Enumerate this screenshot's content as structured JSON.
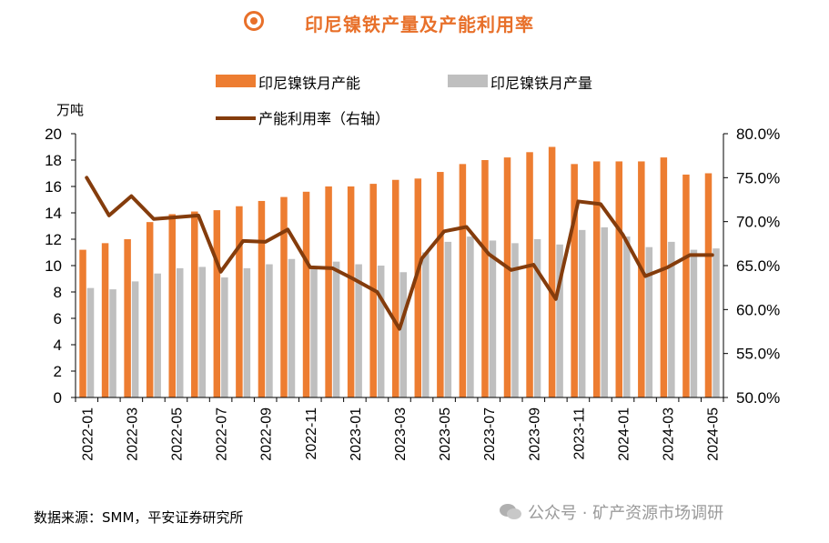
{
  "title": "印尼镍铁产量及产能利用率",
  "source": "数据来源：SMM，平安证券研究所",
  "watermark": "公众号 · 矿产资源市场调研",
  "colors": {
    "capacity": "#ED7D31",
    "output": "#BFBFBF",
    "utilization": "#843C0C",
    "title": "#E8702A"
  },
  "chart_data": {
    "type": "bar",
    "left_axis": {
      "unit": "万吨",
      "min": 0,
      "max": 20,
      "step": 2,
      "ticks": [
        "0",
        "2",
        "4",
        "6",
        "8",
        "10",
        "12",
        "14",
        "16",
        "18",
        "20"
      ]
    },
    "right_axis": {
      "min": 50,
      "max": 80,
      "step": 5,
      "ticks": [
        "50.0%",
        "55.0%",
        "60.0%",
        "65.0%",
        "70.0%",
        "75.0%",
        "80.0%"
      ]
    },
    "categories": [
      "2022-01",
      "2022-02",
      "2022-03",
      "2022-04",
      "2022-05",
      "2022-06",
      "2022-07",
      "2022-08",
      "2022-09",
      "2022-10",
      "2022-11",
      "2022-12",
      "2023-01",
      "2023-02",
      "2023-03",
      "2023-04",
      "2023-05",
      "2023-06",
      "2023-07",
      "2023-08",
      "2023-09",
      "2023-10",
      "2023-11",
      "2023-12",
      "2024-01",
      "2024-02",
      "2024-03",
      "2024-04",
      "2024-05"
    ],
    "x_tick_labels": [
      "2022-01",
      "2022-03",
      "2022-05",
      "2022-07",
      "2022-09",
      "2022-11",
      "2023-01",
      "2023-03",
      "2023-05",
      "2023-07",
      "2023-09",
      "2023-11",
      "2024-01",
      "2024-03",
      "2024-05"
    ],
    "series": [
      {
        "name": "印尼镍铁月产能",
        "type": "bar",
        "axis": "left",
        "values": [
          11.2,
          11.7,
          12.0,
          13.3,
          13.9,
          14.1,
          14.2,
          14.5,
          14.9,
          15.2,
          15.6,
          16.0,
          16.0,
          16.2,
          16.5,
          16.6,
          17.1,
          17.7,
          18.0,
          18.2,
          18.6,
          19.0,
          17.7,
          17.9,
          17.9,
          17.9,
          18.2,
          16.9,
          17.0
        ]
      },
      {
        "name": "印尼镍铁月产量",
        "type": "bar",
        "axis": "left",
        "values": [
          8.3,
          8.2,
          8.8,
          9.4,
          9.8,
          9.9,
          9.1,
          9.8,
          10.1,
          10.5,
          9.9,
          10.3,
          10.1,
          10.0,
          9.5,
          11.0,
          11.8,
          12.2,
          11.9,
          11.7,
          12.0,
          11.6,
          12.7,
          12.9,
          12.2,
          11.4,
          11.8,
          11.2,
          11.3
        ]
      },
      {
        "name": "产能利用率（右轴）",
        "type": "line",
        "axis": "right",
        "values": [
          75.0,
          70.7,
          72.9,
          70.3,
          70.5,
          70.7,
          64.3,
          67.8,
          67.7,
          69.1,
          64.8,
          64.7,
          63.4,
          62.0,
          57.8,
          65.8,
          68.9,
          69.4,
          66.3,
          64.5,
          65.1,
          61.2,
          72.3,
          72.0,
          68.5,
          63.8,
          64.8,
          66.2,
          66.2
        ]
      }
    ]
  }
}
